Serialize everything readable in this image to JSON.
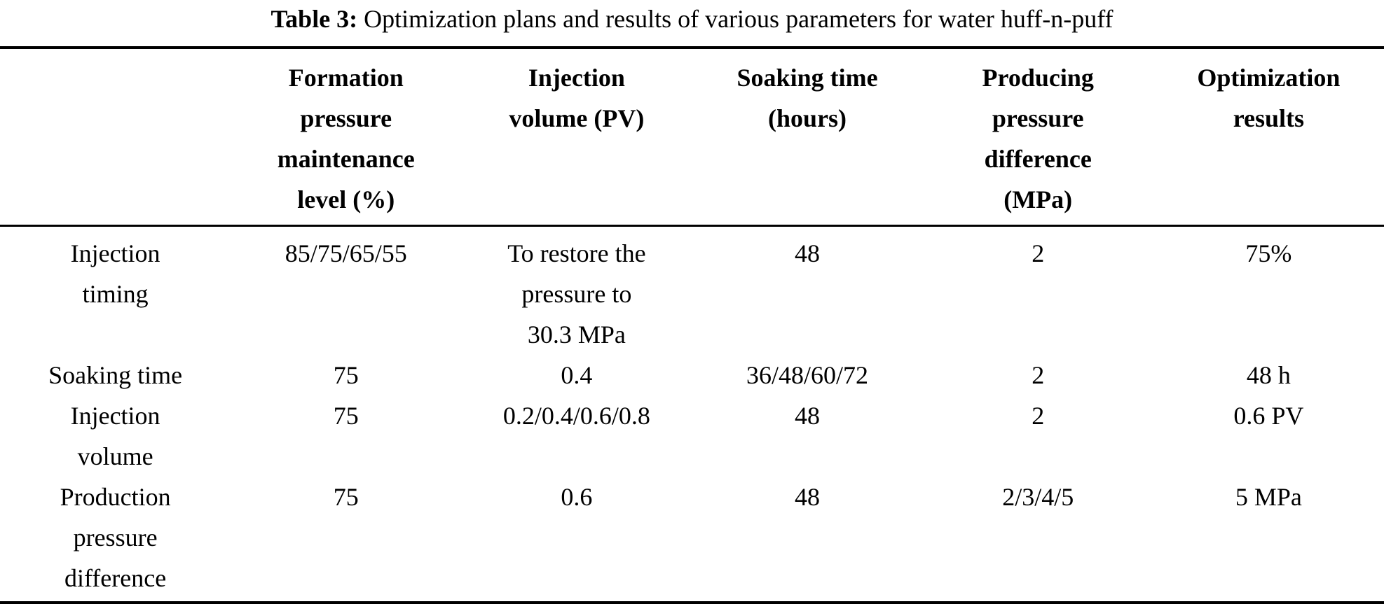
{
  "caption": {
    "label": "Table 3:",
    "text": "Optimization plans and results of various parameters for water huff-n-puff"
  },
  "table": {
    "columns": [
      "",
      "Formation pressure maintenance level (%)",
      "Injection volume (PV)",
      "Soaking time (hours)",
      "Producing pressure difference (MPa)",
      "Optimization results"
    ],
    "rows": [
      [
        "Injection timing",
        "85/75/65/55",
        "To restore the pressure to 30.3 MPa",
        "48",
        "2",
        "75%"
      ],
      [
        "Soaking time",
        "75",
        "0.4",
        "36/48/60/72",
        "2",
        "48 h"
      ],
      [
        "Injection volume",
        "75",
        "0.2/0.4/0.6/0.8",
        "48",
        "2",
        "0.6 PV"
      ],
      [
        "Production pressure difference",
        "75",
        "0.6",
        "48",
        "2/3/4/5",
        "5 MPa"
      ]
    ]
  },
  "colors": {
    "text": "#000000",
    "background": "#ffffff",
    "rule": "#000000"
  }
}
